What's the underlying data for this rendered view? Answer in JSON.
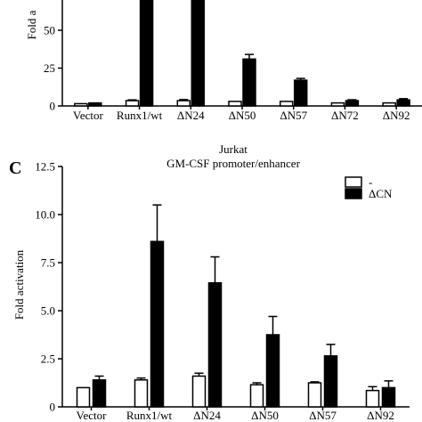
{
  "panel_c_label": "C",
  "chart_data": [
    {
      "type": "bar",
      "panel": "top",
      "ylabel_visible": "Fold a",
      "y_ticks": [
        0,
        25,
        50
      ],
      "ylim": [
        0,
        70
      ],
      "categories": [
        "Vector",
        "Runx1/wt",
        "ΔN24",
        "ΔN50",
        "ΔN57",
        "ΔN72",
        "ΔN92"
      ],
      "series": [
        {
          "fill": "#ffffff",
          "values": [
            1.5,
            3.5,
            3.5,
            3,
            3,
            2,
            2
          ]
        },
        {
          "fill": "#000000",
          "values": [
            2,
            70,
            70,
            31,
            17,
            3.5,
            4
          ]
        }
      ],
      "errors": [
        [
          0,
          0.5,
          0.7,
          0,
          0,
          0,
          0
        ],
        [
          0,
          0,
          0,
          3,
          1.2,
          0.6,
          0.8
        ]
      ],
      "grid": false
    },
    {
      "type": "bar",
      "panel": "C",
      "title": "Jurkat",
      "subtitle": "GM-CSF promoter/enhancer",
      "ylabel": "Fold activation",
      "y_ticks": [
        0,
        2.5,
        5.0,
        7.5,
        10.0,
        12.5
      ],
      "y_tick_labels": [
        "0",
        "2.5",
        "5.0",
        "7.5",
        "10.0",
        "12.5"
      ],
      "ylim": [
        0,
        12.5
      ],
      "categories": [
        "Vector",
        "Runx1/wt",
        "ΔN24",
        "ΔN50",
        "ΔN57",
        "ΔN92"
      ],
      "legend_position": "top-right",
      "series": [
        {
          "name": "-",
          "fill": "#ffffff",
          "values": [
            1.0,
            1.4,
            1.6,
            1.15,
            1.25,
            0.85
          ]
        },
        {
          "name": "ΔCN",
          "fill": "#000000",
          "values": [
            1.4,
            8.6,
            6.45,
            3.75,
            2.65,
            1.0
          ]
        }
      ],
      "errors": [
        [
          0,
          0.1,
          0.15,
          0.1,
          0.05,
          0.2
        ],
        [
          0.2,
          1.9,
          1.35,
          0.95,
          0.6,
          0.35
        ]
      ],
      "grid": false
    }
  ]
}
